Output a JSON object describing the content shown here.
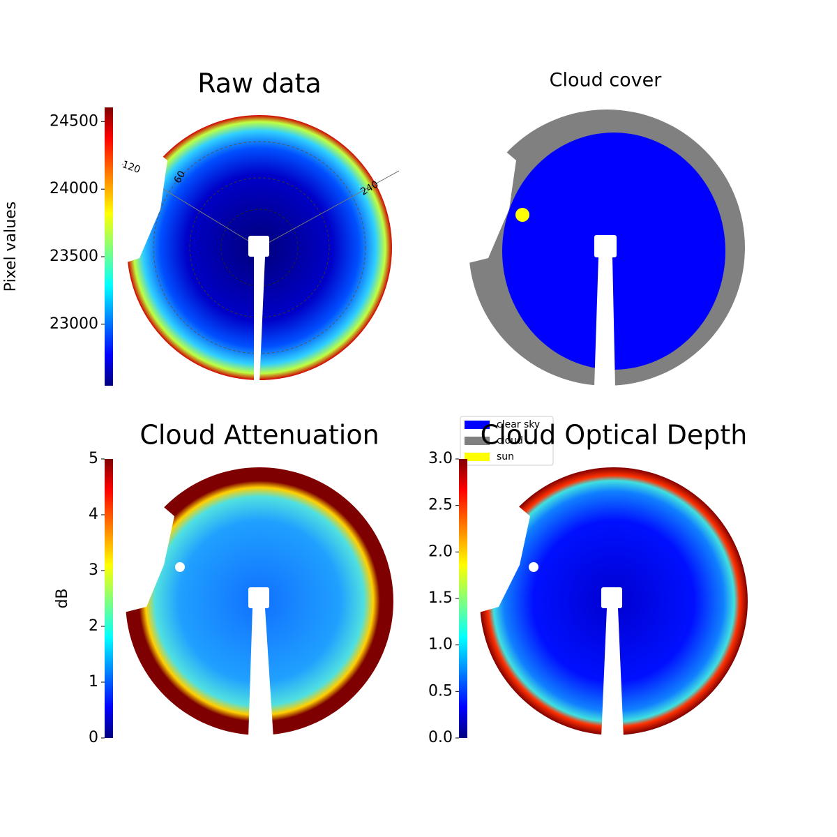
{
  "chart_data": [
    {
      "type": "image",
      "title": "Raw data",
      "colorbar_label": "Pixel values",
      "colormap": "jet",
      "clim": [
        22545,
        24605
      ],
      "cticks": [
        23000,
        23500,
        24000,
        24500
      ],
      "polar_labels": [
        "120",
        "60",
        "240"
      ]
    },
    {
      "type": "categorical",
      "title": "Cloud cover",
      "legend": [
        {
          "name": "clear sky",
          "color": "#0000ff"
        },
        {
          "name": "cloud",
          "color": "#808080"
        },
        {
          "name": "sun",
          "color": "#ffff00"
        }
      ]
    },
    {
      "type": "image",
      "title": "Cloud Attenuation",
      "colorbar_label": "dB",
      "colormap": "jet",
      "clim": [
        0,
        5
      ],
      "cticks": [
        0,
        1,
        2,
        3,
        4,
        5
      ]
    },
    {
      "type": "image",
      "title": "Cloud Optical Depth",
      "colormap": "jet",
      "clim": [
        0,
        3
      ],
      "cticks": [
        {
          "value": 0,
          "label": "0.0"
        },
        {
          "value": 0.5,
          "label": "0.5"
        },
        {
          "value": 1,
          "label": "1.0"
        },
        {
          "value": 1.5,
          "label": "1.5"
        },
        {
          "value": 2,
          "label": "2.0"
        },
        {
          "value": 2.5,
          "label": "2.5"
        },
        {
          "value": 3,
          "label": "3.0"
        }
      ]
    }
  ]
}
